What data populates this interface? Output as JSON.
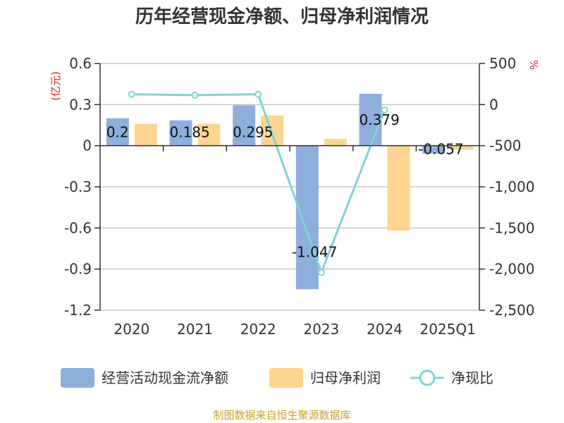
{
  "title": "历年经营现金净额、归母净利润情况",
  "source_note": "制图数据来自恒生聚源数据库",
  "chart_data": {
    "type": "bar",
    "title": "历年经营现金净额、归母净利润情况",
    "categories": [
      "2020",
      "2021",
      "2022",
      "2023",
      "2024",
      "2025Q1"
    ],
    "left_axis": {
      "unit_label": "(亿元)",
      "ylim": [
        -1.2,
        0.6
      ],
      "ticks": [
        "0.6",
        "0.3",
        "0",
        "-0.3",
        "-0.6",
        "-0.9",
        "-1.2"
      ]
    },
    "right_axis": {
      "unit_label": "%",
      "ylim": [
        -2500,
        500
      ],
      "ticks": [
        "500",
        "0",
        "-500",
        "-1,000",
        "-1,500",
        "-2,000",
        "-2,500"
      ]
    },
    "series": [
      {
        "name": "经营活动现金流净额",
        "kind": "bar",
        "axis": "left",
        "color": "#8eaedc",
        "values": [
          0.2,
          0.185,
          0.295,
          -1.047,
          0.379,
          -0.057
        ],
        "labels": [
          "0.2",
          "0.185",
          "0.295",
          "-1.047",
          "0.379",
          "-0.057"
        ]
      },
      {
        "name": "归母净利润",
        "kind": "bar",
        "axis": "left",
        "color": "#fdd591",
        "values": [
          0.16,
          0.16,
          0.22,
          0.05,
          -0.62,
          -0.03
        ]
      },
      {
        "name": "净现比",
        "kind": "line",
        "axis": "right",
        "color": "#7fd3d8",
        "values": [
          125,
          115,
          125,
          -2040,
          -65,
          null
        ]
      }
    ],
    "grid": true,
    "legend_position": "bottom"
  }
}
